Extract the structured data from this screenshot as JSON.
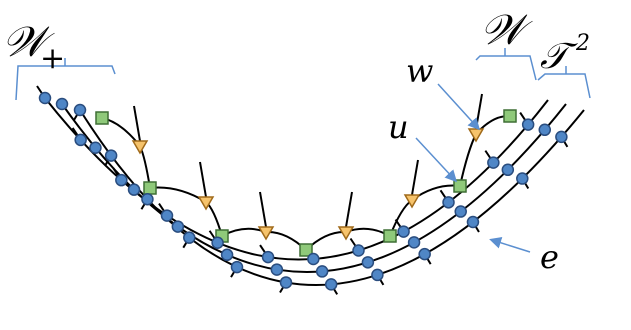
{
  "labels": {
    "w_plus": {
      "main": "𝒲",
      "sub": "+"
    },
    "w": "𝒲",
    "t2": {
      "main": "𝒯",
      "sup": "2"
    },
    "w_small": "w",
    "u": "u",
    "e": "e"
  },
  "colors": {
    "node_blue": "#4f86c6",
    "node_blue_stroke": "#2a4d7f",
    "square_green": "#8fc97a",
    "square_green_stroke": "#3f6f35",
    "triangle_orange": "#f6c36b",
    "triangle_orange_stroke": "#a06a1a",
    "bracket_blue": "#5b8fd0",
    "arrow_blue": "#5b8fd0",
    "line_black": "#000000"
  }
}
